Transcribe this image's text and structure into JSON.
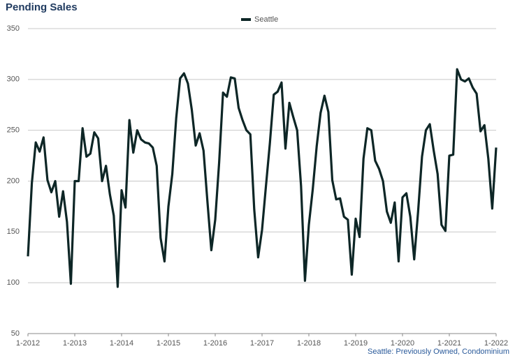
{
  "chart_data": {
    "type": "line",
    "title": "Pending Sales",
    "footnote": "Seattle: Previously Owned, Condominium",
    "categories": [
      "1-2012",
      null,
      null,
      null,
      null,
      null,
      null,
      null,
      null,
      null,
      null,
      null,
      "1-2013",
      null,
      null,
      null,
      null,
      null,
      null,
      null,
      null,
      null,
      null,
      null,
      "1-2014",
      null,
      null,
      null,
      null,
      null,
      null,
      null,
      null,
      null,
      null,
      null,
      "1-2015",
      null,
      null,
      null,
      null,
      null,
      null,
      null,
      null,
      null,
      null,
      null,
      "1-2016",
      null,
      null,
      null,
      null,
      null,
      null,
      null,
      null,
      null,
      null,
      null,
      "1-2017",
      null,
      null,
      null,
      null,
      null,
      null,
      null,
      null,
      null,
      null,
      null,
      "1-2018",
      null,
      null,
      null,
      null,
      null,
      null,
      null,
      null,
      null,
      null,
      null,
      "1-2019",
      null,
      null,
      null,
      null,
      null,
      null,
      null,
      null,
      null,
      null,
      null,
      "1-2020",
      null,
      null,
      null,
      null,
      null,
      null,
      null,
      null,
      null,
      null,
      null,
      "1-2021",
      null,
      null,
      null,
      null,
      null,
      null,
      null,
      null,
      null,
      null,
      null,
      "1-2022"
    ],
    "series": [
      {
        "name": "Seattle",
        "color": "#0d2626",
        "values": [
          126,
          198,
          238,
          229,
          243,
          201,
          189,
          200,
          165,
          190,
          160,
          99,
          200,
          200,
          252,
          224,
          227,
          248,
          242,
          200,
          215,
          187,
          166,
          96,
          191,
          174,
          260,
          228,
          250,
          241,
          238,
          237,
          233,
          215,
          144,
          121,
          175,
          207,
          262,
          301,
          306,
          296,
          270,
          235,
          247,
          230,
          180,
          132,
          162,
          218,
          287,
          283,
          302,
          301,
          272,
          260,
          250,
          246,
          172,
          125,
          152,
          195,
          237,
          285,
          288,
          297,
          232,
          277,
          263,
          250,
          195,
          102,
          157,
          192,
          234,
          267,
          284,
          268,
          201,
          182,
          183,
          165,
          162,
          108,
          163,
          145,
          222,
          252,
          250,
          220,
          212,
          200,
          170,
          159,
          179,
          121,
          184,
          188,
          165,
          123,
          170,
          224,
          250,
          256,
          230,
          207,
          157,
          151,
          225,
          226,
          310,
          300,
          298,
          301,
          292,
          286,
          249,
          255,
          222,
          173,
          233
        ]
      }
    ],
    "ylim": [
      50,
      350
    ],
    "yticks": [
      50,
      100,
      150,
      200,
      250,
      300,
      350
    ],
    "grid": true
  }
}
